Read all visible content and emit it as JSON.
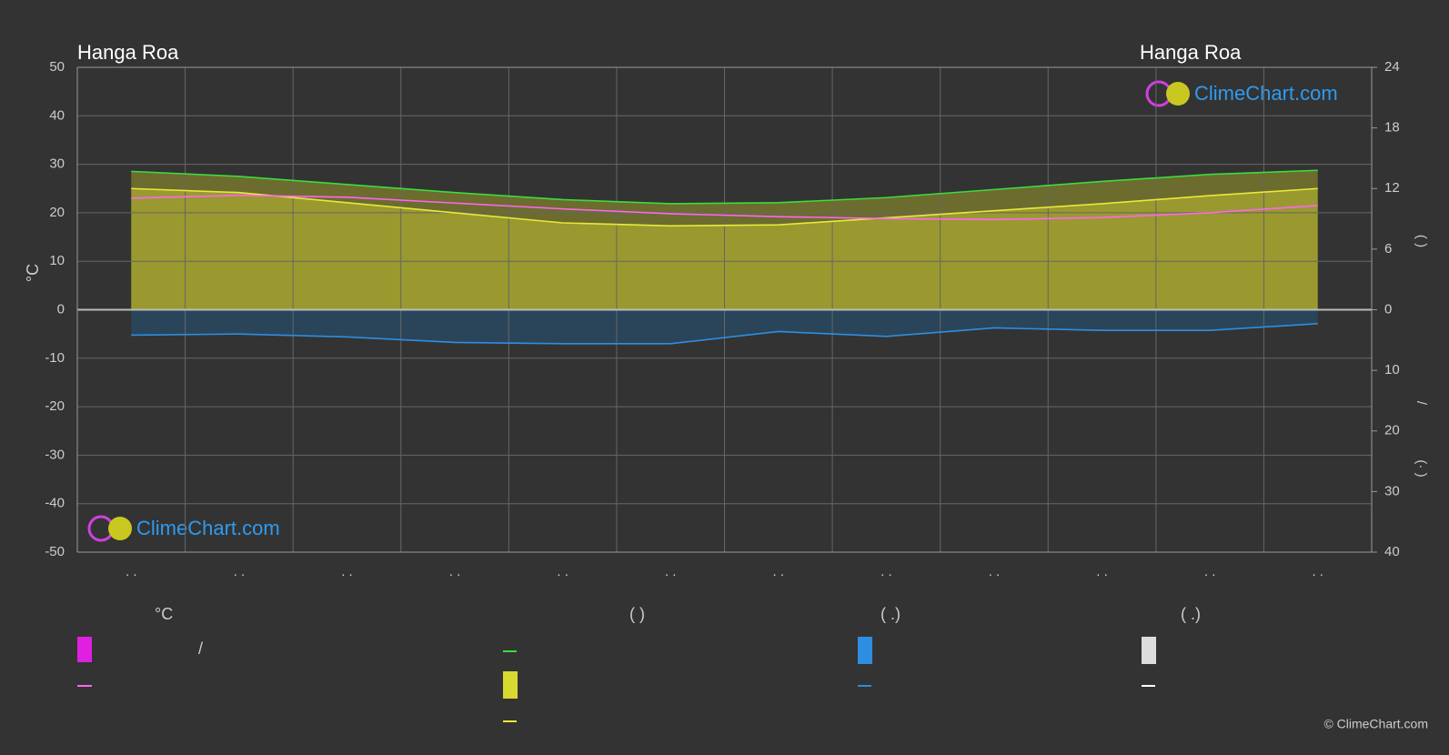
{
  "chart_data": {
    "type": "line",
    "title_left": "Hanga Roa",
    "title_right": "Hanga Roa",
    "watermark": "ClimeChart.com",
    "copyright": "© ClimeChart.com",
    "y_label": "°C",
    "y2_label_sun": "(    )",
    "y2_label_precip": "/",
    "y2_label_precip_unit": "(·   )",
    "categories": [
      ". .",
      ". .",
      ". .",
      ". .",
      ". .",
      ". .",
      ". .",
      ". .",
      ". .",
      ". .",
      ". .",
      ". ."
    ],
    "ylim": [
      -50,
      50
    ],
    "yticks": [
      -50,
      -40,
      -30,
      -20,
      -10,
      0,
      10,
      20,
      30,
      40,
      50
    ],
    "sun_lim": [
      0,
      24
    ],
    "sun_ticks": [
      0,
      6,
      12,
      18,
      24
    ],
    "precip_lim": [
      0,
      40
    ],
    "precip_ticks": [
      10,
      20,
      30,
      40
    ],
    "grid": true,
    "series": [
      {
        "color": "#3ddc3d",
        "axis": "sun",
        "values": [
          13.7,
          13.2,
          12.4,
          11.6,
          10.9,
          10.5,
          10.6,
          11.1,
          11.9,
          12.7,
          13.4,
          13.8
        ]
      },
      {
        "color": "#e8e83a",
        "axis": "sun",
        "values": [
          12,
          11.6,
          10.6,
          9.6,
          8.6,
          8.3,
          8.4,
          9.1,
          9.8,
          10.5,
          11.3,
          12
        ]
      },
      {
        "color": "#ff66ee",
        "axis": "y",
        "values": [
          23,
          23.6,
          23.2,
          22,
          20.8,
          19.8,
          19.2,
          18.8,
          18.6,
          19,
          20,
          21.5
        ]
      },
      {
        "color": "#2e8ee0",
        "axis": "precip",
        "values": [
          4.2,
          4.0,
          4.5,
          5.4,
          5.6,
          5.6,
          3.6,
          4.4,
          3.0,
          3.4,
          3.4,
          2.3
        ]
      }
    ],
    "legend": {
      "headers": [
        "°C",
        "(            )",
        "(   .)",
        "(   .)"
      ],
      "items": [
        "/"
      ]
    }
  }
}
